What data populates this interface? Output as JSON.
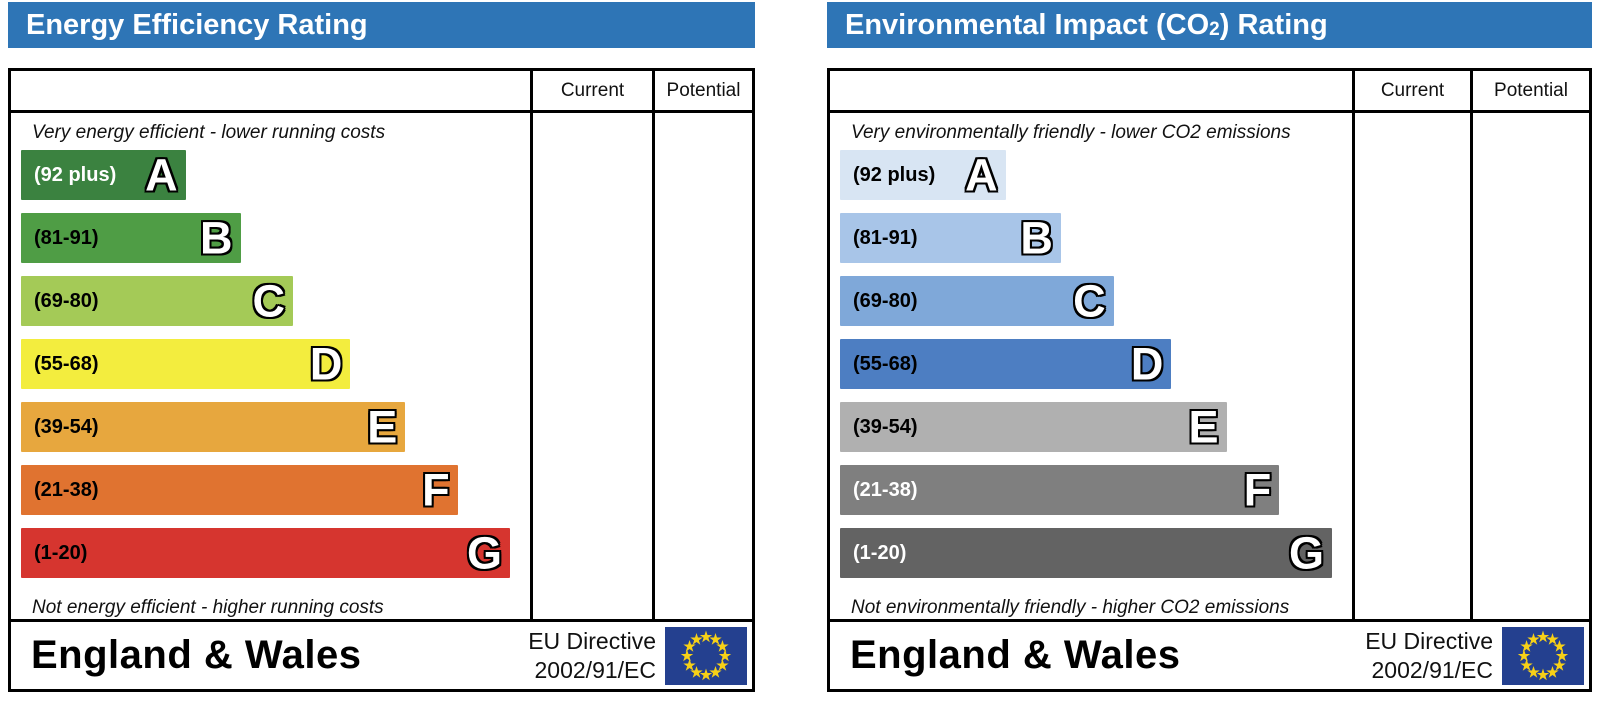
{
  "colors": {
    "header_bg": "#2e75b6",
    "header_text": "#ffffff",
    "table_border": "#000000",
    "letter_fill": "#ffffff",
    "letter_outline": "#000000",
    "flag_bg": "#24408f",
    "flag_stars": "#f7d117"
  },
  "chart_data": [
    {
      "type": "bar",
      "panel": "energy-efficiency-rating",
      "title": "Energy Efficiency Rating",
      "title_parts": {
        "pre": "Energy Efficiency Rating",
        "sub": "",
        "post": ""
      },
      "column_headers": [
        "Current",
        "Potential"
      ],
      "top_caption": "Very energy efficient - lower running costs",
      "bottom_caption": "Not energy efficient - higher running costs",
      "bands": [
        {
          "letter": "A",
          "range_label": "(92 plus)",
          "range": [
            92,
            100
          ],
          "width_pct": 33,
          "color": "#3b8240",
          "label_color": "#ffffff"
        },
        {
          "letter": "B",
          "range_label": "(81-91)",
          "range": [
            81,
            91
          ],
          "width_pct": 44,
          "color": "#4f9d45",
          "label_color": "#000000"
        },
        {
          "letter": "C",
          "range_label": "(69-80)",
          "range": [
            69,
            80
          ],
          "width_pct": 54.5,
          "color": "#a4ca57",
          "label_color": "#000000"
        },
        {
          "letter": "D",
          "range_label": "(55-68)",
          "range": [
            55,
            68
          ],
          "width_pct": 66,
          "color": "#f3ed3e",
          "label_color": "#000000"
        },
        {
          "letter": "E",
          "range_label": "(39-54)",
          "range": [
            39,
            54
          ],
          "width_pct": 77,
          "color": "#e7a73e",
          "label_color": "#000000"
        },
        {
          "letter": "F",
          "range_label": "(21-38)",
          "range": [
            21,
            38
          ],
          "width_pct": 87.5,
          "color": "#e07330",
          "label_color": "#000000"
        },
        {
          "letter": "G",
          "range_label": "(1-20)",
          "range": [
            1,
            20
          ],
          "width_pct": 98,
          "color": "#d6352f",
          "label_color": "#000000"
        }
      ],
      "footer": {
        "region": "England & Wales",
        "directive_line1": "EU Directive",
        "directive_line2": "2002/91/EC",
        "flag": "eu-flag"
      }
    },
    {
      "type": "bar",
      "panel": "environmental-impact-co2-rating",
      "title": "Environmental Impact (CO2) Rating",
      "title_parts": {
        "pre": "Environmental Impact (CO",
        "sub": "2",
        "post": ") Rating"
      },
      "column_headers": [
        "Current",
        "Potential"
      ],
      "top_caption": "Very environmentally friendly - lower CO2 emissions",
      "bottom_caption": "Not environmentally friendly - higher CO2 emissions",
      "bands": [
        {
          "letter": "A",
          "range_label": "(92 plus)",
          "range": [
            92,
            100
          ],
          "width_pct": 33,
          "color": "#d8e5f3",
          "label_color": "#000000"
        },
        {
          "letter": "B",
          "range_label": "(81-91)",
          "range": [
            81,
            91
          ],
          "width_pct": 44,
          "color": "#a8c5e8",
          "label_color": "#000000"
        },
        {
          "letter": "C",
          "range_label": "(69-80)",
          "range": [
            69,
            80
          ],
          "width_pct": 54.5,
          "color": "#7fa8d9",
          "label_color": "#000000"
        },
        {
          "letter": "D",
          "range_label": "(55-68)",
          "range": [
            55,
            68
          ],
          "width_pct": 66,
          "color": "#4d7ec2",
          "label_color": "#000000"
        },
        {
          "letter": "E",
          "range_label": "(39-54)",
          "range": [
            39,
            54
          ],
          "width_pct": 77,
          "color": "#b0b0b0",
          "label_color": "#000000"
        },
        {
          "letter": "F",
          "range_label": "(21-38)",
          "range": [
            21,
            38
          ],
          "width_pct": 87.5,
          "color": "#7f7f7f",
          "label_color": "#ffffff"
        },
        {
          "letter": "G",
          "range_label": "(1-20)",
          "range": [
            1,
            20
          ],
          "width_pct": 98,
          "color": "#636363",
          "label_color": "#ffffff"
        }
      ],
      "footer": {
        "region": "England & Wales",
        "directive_line1": "EU Directive",
        "directive_line2": "2002/91/EC",
        "flag": "eu-flag"
      }
    }
  ]
}
